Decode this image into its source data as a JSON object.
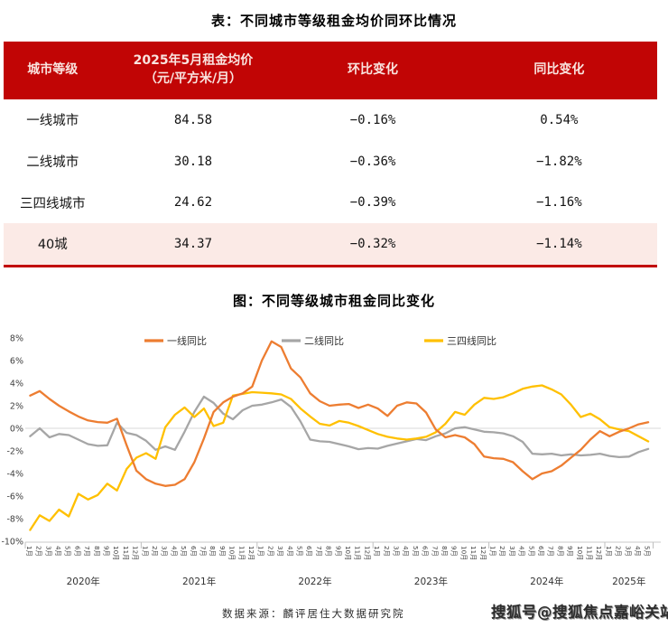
{
  "page_title": "表：不同城市等级租金均价同环比情况",
  "table": {
    "col_city_tier": "城市等级",
    "col_price_line1": "2025年5月租金均价",
    "col_price_line2": "（元/平方米/月）",
    "col_mom": "环比变化",
    "col_yoy": "同比变化",
    "rows": [
      {
        "tier": "一线城市",
        "price": "84.58",
        "mom": "−0.16%",
        "yoy": "0.54%"
      },
      {
        "tier": "二线城市",
        "price": "30.18",
        "mom": "−0.36%",
        "yoy": "−1.82%"
      },
      {
        "tier": "三四线城市",
        "price": "24.62",
        "mom": "−0.39%",
        "yoy": "−1.16%"
      },
      {
        "tier": "40城",
        "price": "34.37",
        "mom": "−0.32%",
        "yoy": "−1.14%"
      }
    ],
    "highlight_row_index": 3,
    "header_bg": "#C10505",
    "highlight_bg": "#FBEAE6"
  },
  "chart_title": "图：不同等级城市租金同比变化",
  "chart_data": {
    "type": "line",
    "title": "图：不同等级城市租金同比变化",
    "ylabel": "",
    "xlabel": "",
    "ylim": [
      -10,
      8
    ],
    "y_tick_step": 2,
    "y_tick_suffix": "%",
    "grid": "zero-line-only",
    "legend_position": "top",
    "month_names": [
      "1月",
      "2月",
      "3月",
      "4月",
      "5月",
      "6月",
      "7月",
      "8月",
      "9月",
      "10月",
      "11月",
      "12月"
    ],
    "x_years": [
      {
        "label": "2020年",
        "months": 12
      },
      {
        "label": "2021年",
        "months": 12
      },
      {
        "label": "2022年",
        "months": 12
      },
      {
        "label": "2023年",
        "months": 12
      },
      {
        "label": "2024年",
        "months": 12
      },
      {
        "label": "2025年",
        "months": 5
      }
    ],
    "series": [
      {
        "name": "一线同比",
        "color": "#ED7D31",
        "z": 3,
        "values": [
          2.9,
          3.3,
          2.6,
          2.0,
          1.5,
          1.05,
          0.7,
          0.55,
          0.5,
          0.85,
          -1.5,
          -3.75,
          -4.5,
          -4.9,
          -5.1,
          -5.0,
          -4.5,
          -3.0,
          -0.9,
          1.45,
          2.3,
          2.8,
          3.1,
          3.7,
          6.0,
          7.7,
          7.2,
          5.3,
          4.5,
          3.1,
          2.4,
          2.0,
          2.1,
          2.15,
          1.8,
          2.1,
          1.75,
          1.1,
          2.0,
          2.3,
          2.2,
          1.4,
          -0.1,
          -0.8,
          -0.6,
          -0.8,
          -1.4,
          -2.5,
          -2.65,
          -2.7,
          -3.0,
          -3.8,
          -4.5,
          -4.0,
          -3.8,
          -3.3,
          -2.6,
          -1.9,
          -1.0,
          -0.25,
          -0.7,
          -0.3,
          0.0,
          0.35,
          0.54
        ]
      },
      {
        "name": "二线同比",
        "color": "#A6A6A6",
        "z": 1,
        "values": [
          -0.7,
          0.0,
          -0.8,
          -0.5,
          -0.6,
          -1.0,
          -1.4,
          -1.55,
          -1.5,
          0.5,
          -0.4,
          -0.6,
          -1.1,
          -1.9,
          -1.6,
          -1.9,
          -0.3,
          1.45,
          2.8,
          2.25,
          1.3,
          0.8,
          1.6,
          2.0,
          2.1,
          2.3,
          2.55,
          1.9,
          0.6,
          -1.0,
          -1.15,
          -1.2,
          -1.4,
          -1.6,
          -1.85,
          -1.75,
          -1.8,
          -1.55,
          -1.35,
          -1.15,
          -0.95,
          -1.05,
          -0.7,
          -0.45,
          0.0,
          0.1,
          -0.1,
          -0.3,
          -0.35,
          -0.45,
          -0.7,
          -1.2,
          -2.25,
          -2.3,
          -2.25,
          -2.4,
          -2.3,
          -2.4,
          -2.35,
          -2.25,
          -2.45,
          -2.55,
          -2.5,
          -2.1,
          -1.82
        ]
      },
      {
        "name": "三四线同比",
        "color": "#FFC000",
        "z": 2,
        "values": [
          -9.0,
          -7.7,
          -8.2,
          -7.2,
          -7.8,
          -5.8,
          -6.3,
          -5.9,
          -4.9,
          -5.5,
          -3.6,
          -2.6,
          -2.2,
          -2.7,
          0.1,
          1.2,
          1.85,
          1.0,
          1.75,
          0.2,
          0.5,
          2.9,
          3.05,
          3.2,
          3.15,
          3.1,
          3.0,
          2.6,
          1.75,
          1.05,
          0.4,
          0.25,
          0.65,
          0.5,
          0.2,
          -0.15,
          -0.5,
          -0.75,
          -0.9,
          -1.0,
          -0.9,
          -0.75,
          -0.35,
          0.4,
          1.45,
          1.2,
          2.1,
          2.7,
          2.6,
          2.75,
          3.1,
          3.5,
          3.7,
          3.8,
          3.45,
          3.0,
          2.1,
          1.0,
          1.3,
          0.8,
          0.1,
          -0.1,
          -0.25,
          -0.7,
          -1.16
        ]
      }
    ]
  },
  "footer": {
    "source": "数据来源：麟评居住大数据研究院",
    "watermark": "搜狐号@搜狐焦点嘉峪关站"
  },
  "colors": {
    "accent_red": "#C10505",
    "highlight_pink": "#FBEAE6",
    "line_tier1": "#ED7D31",
    "line_tier2": "#A6A6A6",
    "line_tier34": "#FFC000",
    "gridline": "#D9D9D9",
    "axis_text": "#3f3f3f"
  }
}
